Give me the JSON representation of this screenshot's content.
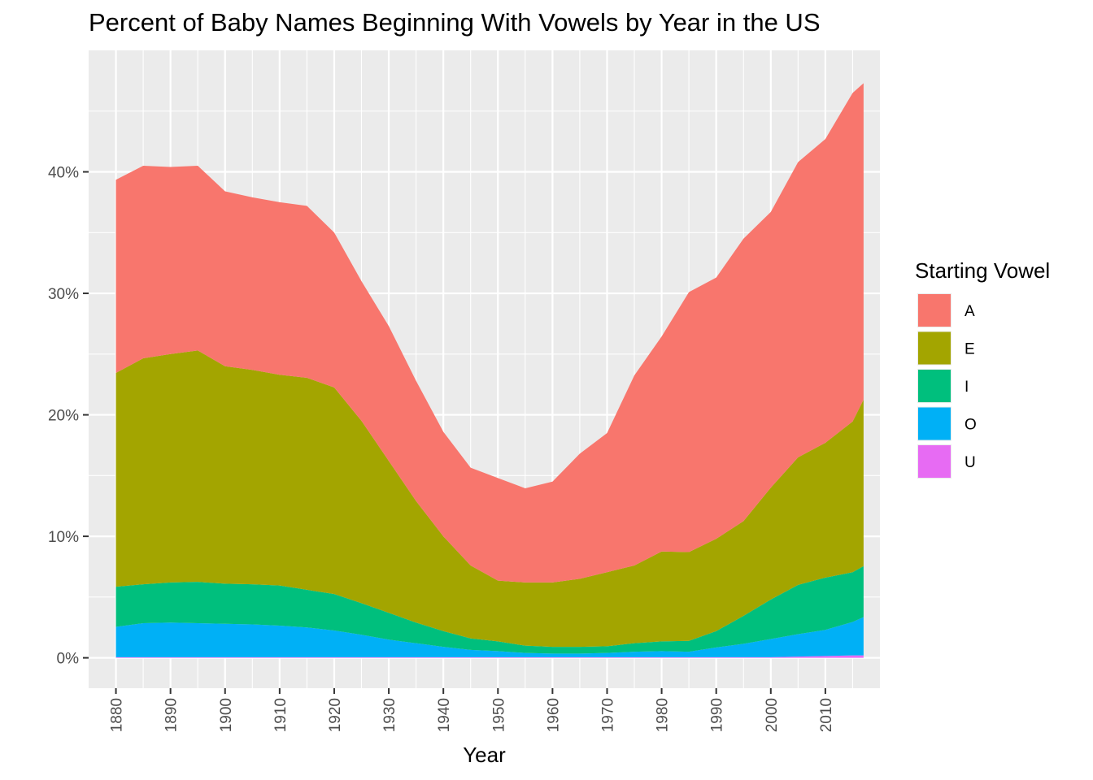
{
  "chart_data": {
    "type": "area",
    "stacked": true,
    "title": "Percent of Baby Names Beginning With Vowels by Year in the US",
    "xlabel": "Year",
    "ylabel": "",
    "xlim": [
      1875,
      2020
    ],
    "ylim": [
      -2.5,
      50
    ],
    "x_ticks": [
      1880,
      1890,
      1900,
      1910,
      1920,
      1930,
      1940,
      1950,
      1960,
      1970,
      1980,
      1990,
      2000,
      2010
    ],
    "x_tick_labels": [
      "1880",
      "1890",
      "1900",
      "1910",
      "1920",
      "1930",
      "1940",
      "1950",
      "1960",
      "1970",
      "1980",
      "1990",
      "2000",
      "2010"
    ],
    "y_ticks": [
      0,
      10,
      20,
      30,
      40
    ],
    "y_tick_labels": [
      "0%",
      "10%",
      "20%",
      "30%",
      "40%"
    ],
    "grid": true,
    "legend": {
      "title": "Starting Vowel",
      "position": "right"
    },
    "x": [
      1880,
      1885,
      1890,
      1895,
      1900,
      1905,
      1910,
      1915,
      1920,
      1925,
      1930,
      1935,
      1940,
      1945,
      1950,
      1955,
      1960,
      1965,
      1970,
      1975,
      1980,
      1985,
      1990,
      1995,
      2000,
      2005,
      2010,
      2015,
      2017
    ],
    "series": [
      {
        "name": "U",
        "color": "#E76BF3",
        "values": [
          0.05,
          0.05,
          0.05,
          0.05,
          0.05,
          0.05,
          0.05,
          0.05,
          0.05,
          0.05,
          0.05,
          0.05,
          0.05,
          0.05,
          0.05,
          0.05,
          0.05,
          0.05,
          0.05,
          0.05,
          0.05,
          0.05,
          0.05,
          0.05,
          0.05,
          0.1,
          0.15,
          0.2,
          0.2
        ]
      },
      {
        "name": "O",
        "color": "#00B0F6",
        "values": [
          2.5,
          2.8,
          2.85,
          2.8,
          2.75,
          2.7,
          2.6,
          2.45,
          2.2,
          1.85,
          1.45,
          1.15,
          0.85,
          0.6,
          0.5,
          0.35,
          0.3,
          0.3,
          0.35,
          0.45,
          0.5,
          0.45,
          0.8,
          1.1,
          1.5,
          1.85,
          2.15,
          2.75,
          3.15
        ]
      },
      {
        "name": "I",
        "color": "#00BF7D",
        "values": [
          3.3,
          3.2,
          3.3,
          3.4,
          3.3,
          3.3,
          3.3,
          3.1,
          3.0,
          2.6,
          2.2,
          1.7,
          1.3,
          0.95,
          0.8,
          0.6,
          0.55,
          0.55,
          0.55,
          0.7,
          0.8,
          0.9,
          1.35,
          2.3,
          3.25,
          4.05,
          4.3,
          4.1,
          4.2
        ]
      },
      {
        "name": "E",
        "color": "#A3A500",
        "values": [
          17.6,
          18.6,
          18.8,
          19.05,
          17.9,
          17.65,
          17.35,
          17.45,
          17.0,
          15.0,
          12.5,
          10.0,
          7.8,
          6.0,
          5.0,
          5.2,
          5.3,
          5.6,
          6.1,
          6.4,
          7.4,
          7.3,
          7.6,
          7.8,
          9.2,
          10.5,
          11.1,
          12.4,
          13.7
        ]
      },
      {
        "name": "A",
        "color": "#F8766D",
        "values": [
          15.9,
          15.85,
          15.4,
          15.2,
          14.4,
          14.2,
          14.2,
          14.15,
          12.75,
          11.5,
          11.1,
          9.9,
          8.6,
          8.05,
          8.45,
          7.75,
          8.3,
          10.3,
          11.45,
          15.65,
          17.7,
          21.4,
          21.5,
          23.25,
          22.7,
          24.3,
          25.0,
          27.05,
          26.05
        ]
      }
    ]
  }
}
